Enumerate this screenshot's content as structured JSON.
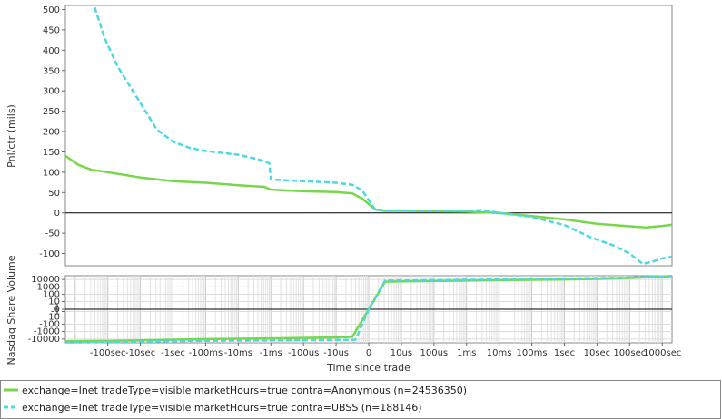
{
  "chart_data": {
    "type": "line",
    "xlabel": "Time since trade",
    "x_tick_labels": [
      "-100sec",
      "-10sec",
      "-1sec",
      "-100ms",
      "-10ms",
      "-1ms",
      "-100us",
      "-10us",
      "0",
      "10us",
      "100us",
      "1ms",
      "10ms",
      "100ms",
      "1sec",
      "10sec",
      "100sec",
      "1000sec"
    ],
    "x_tick_positions": [
      -8,
      -7,
      -6,
      -5,
      -4,
      -3,
      -2,
      -1,
      0,
      1,
      2,
      3,
      4,
      5,
      6,
      7,
      8,
      9
    ],
    "x_range": [
      -9.3,
      9.3
    ],
    "top_panel": {
      "ylabel": "Pnl/ctr (mils)",
      "ylim": [
        -130,
        510
      ],
      "y_ticks": [
        -100,
        -50,
        0,
        50,
        100,
        150,
        200,
        250,
        300,
        350,
        400,
        450,
        500
      ],
      "grid": false,
      "zero_line": true
    },
    "bottom_panel": {
      "ylabel": "Nasdaq Share Volume",
      "scale": "symlog",
      "y_ticks": [
        -10000,
        -1000,
        -100,
        -10,
        -1,
        0,
        1,
        10,
        100,
        1000,
        10000
      ],
      "y_tick_labels": [
        "-10000",
        "-1000",
        "-100",
        "-10",
        "-1",
        "0",
        "1",
        "10",
        "100",
        "1000",
        "10000"
      ],
      "grid": true,
      "zero_line": true
    },
    "series": [
      {
        "name": "exchange=Inet tradeType=visible marketHours=true contra=Anonymous (n=24536350)",
        "color": "#78d64b",
        "dash": "solid",
        "pnl": [
          [
            -9.3,
            140
          ],
          [
            -8.9,
            118
          ],
          [
            -8.5,
            106
          ],
          [
            -8.0,
            100
          ],
          [
            -7.0,
            87
          ],
          [
            -6.0,
            78
          ],
          [
            -5.0,
            74
          ],
          [
            -4.0,
            68
          ],
          [
            -3.2,
            64
          ],
          [
            -3.0,
            57
          ],
          [
            -2.0,
            53
          ],
          [
            -1.0,
            51
          ],
          [
            -0.5,
            48
          ],
          [
            -0.2,
            35
          ],
          [
            0.2,
            8
          ],
          [
            0.5,
            5
          ],
          [
            1.0,
            5
          ],
          [
            2.0,
            4
          ],
          [
            3.0,
            3
          ],
          [
            4.0,
            0
          ],
          [
            5.0,
            -8
          ],
          [
            6.0,
            -16
          ],
          [
            7.0,
            -27
          ],
          [
            8.0,
            -33
          ],
          [
            8.5,
            -36
          ],
          [
            9.0,
            -32
          ],
          [
            9.3,
            -29
          ]
        ],
        "volume": [
          [
            -9.3,
            -20000
          ],
          [
            -8.0,
            -18000
          ],
          [
            -7.0,
            -15000
          ],
          [
            -6.0,
            -12000
          ],
          [
            -5.0,
            -10000
          ],
          [
            -4.0,
            -9000
          ],
          [
            -3.0,
            -8000
          ],
          [
            -2.0,
            -7000
          ],
          [
            -1.0,
            -6000
          ],
          [
            -0.5,
            -5000
          ],
          [
            0.0,
            0
          ],
          [
            0.5,
            5000
          ],
          [
            1.0,
            5500
          ],
          [
            3.0,
            7000
          ],
          [
            5.0,
            9000
          ],
          [
            6.0,
            10000
          ],
          [
            7.0,
            12000
          ],
          [
            8.0,
            16000
          ],
          [
            9.0,
            25000
          ],
          [
            9.3,
            28000
          ]
        ]
      },
      {
        "name": "exchange=Inet tradeType=visible marketHours=true contra=UBSS (n=188146)",
        "color": "#4cd9e3",
        "dash": "dashed",
        "pnl": [
          [
            -8.4,
            505
          ],
          [
            -8.1,
            430
          ],
          [
            -7.7,
            360
          ],
          [
            -7.0,
            270
          ],
          [
            -6.5,
            205
          ],
          [
            -6.0,
            175
          ],
          [
            -5.5,
            160
          ],
          [
            -5.0,
            152
          ],
          [
            -4.0,
            143
          ],
          [
            -3.4,
            132
          ],
          [
            -3.05,
            122
          ],
          [
            -3.0,
            82
          ],
          [
            -2.0,
            78
          ],
          [
            -1.0,
            74
          ],
          [
            -0.5,
            69
          ],
          [
            -0.2,
            55
          ],
          [
            0.2,
            8
          ],
          [
            0.6,
            6
          ],
          [
            1.0,
            6
          ],
          [
            2.0,
            5
          ],
          [
            3.0,
            5
          ],
          [
            3.5,
            7
          ],
          [
            4.0,
            0
          ],
          [
            5.0,
            -10
          ],
          [
            6.0,
            -30
          ],
          [
            6.8,
            -60
          ],
          [
            7.5,
            -80
          ],
          [
            8.0,
            -100
          ],
          [
            8.4,
            -125
          ],
          [
            8.7,
            -120
          ],
          [
            9.0,
            -112
          ],
          [
            9.3,
            -108
          ]
        ],
        "volume": [
          [
            -9.3,
            -28000
          ],
          [
            -8.0,
            -25000
          ],
          [
            -7.0,
            -22000
          ],
          [
            -6.0,
            -19000
          ],
          [
            -5.0,
            -17000
          ],
          [
            -4.0,
            -16000
          ],
          [
            -3.0,
            -15000
          ],
          [
            -2.0,
            -14000
          ],
          [
            -1.0,
            -13000
          ],
          [
            -0.4,
            -12000
          ],
          [
            0.0,
            0
          ],
          [
            0.5,
            7000
          ],
          [
            1.0,
            7500
          ],
          [
            3.0,
            9000
          ],
          [
            5.0,
            11000
          ],
          [
            6.0,
            13000
          ],
          [
            7.0,
            15000
          ],
          [
            8.0,
            18000
          ],
          [
            9.0,
            26000
          ],
          [
            9.3,
            30000
          ]
        ]
      }
    ],
    "legend_position": "bottom"
  }
}
